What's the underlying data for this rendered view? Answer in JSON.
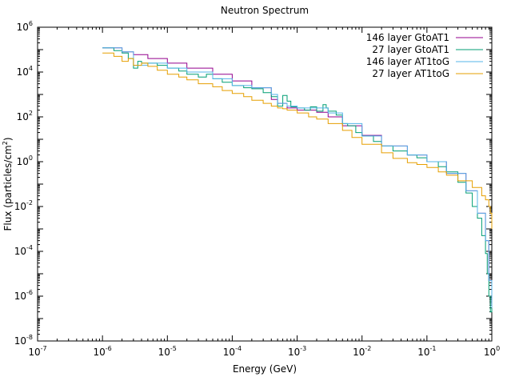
{
  "chart_data": {
    "type": "line",
    "title": "Neutron Spectrum",
    "xlabel": "Energy (GeV)",
    "ylabel_parts": {
      "main": "Flux (particles/cm",
      "sup": "2",
      "close": ")"
    },
    "xscale": "log",
    "yscale": "log",
    "xlim": [
      1e-07,
      1
    ],
    "ylim": [
      1e-08,
      1000000.0
    ],
    "grid": false,
    "legend_position": "top-right",
    "x_ticks": [
      {
        "base": "10",
        "exp": "-7"
      },
      {
        "base": "10",
        "exp": "-6"
      },
      {
        "base": "10",
        "exp": "-5"
      },
      {
        "base": "10",
        "exp": "-4"
      },
      {
        "base": "10",
        "exp": "-3"
      },
      {
        "base": "10",
        "exp": "-2"
      },
      {
        "base": "10",
        "exp": "-1"
      },
      {
        "base": "10",
        "exp": "0"
      }
    ],
    "y_ticks": [
      {
        "base": "10",
        "exp": "-8"
      },
      {
        "base": "10",
        "exp": "-6"
      },
      {
        "base": "10",
        "exp": "-4"
      },
      {
        "base": "10",
        "exp": "-2"
      },
      {
        "base": "10",
        "exp": "0"
      },
      {
        "base": "10",
        "exp": "2"
      },
      {
        "base": "10",
        "exp": "4"
      },
      {
        "base": "10",
        "exp": "6"
      }
    ],
    "series": [
      {
        "name": "146 layer GtoAT1",
        "color": "#94008e",
        "x": [
          1e-06,
          2e-06,
          3e-06,
          5e-06,
          1e-05,
          2e-05,
          5e-05,
          0.0001,
          0.0002,
          0.0004,
          0.0005,
          0.0007,
          0.001,
          0.002,
          0.003,
          0.005,
          0.01,
          0.02,
          0.05,
          0.1,
          0.2,
          0.4,
          0.6,
          0.8,
          0.9,
          1
        ],
        "y": [
          120000.0,
          80000.0,
          60000.0,
          40000.0,
          25000.0,
          15000.0,
          8000.0,
          4000.0,
          2000.0,
          600,
          400,
          250,
          200,
          160,
          100,
          40,
          15,
          5,
          2,
          1,
          0.3,
          0.05,
          0.005,
          0.0003,
          5e-06,
          2e-07
        ]
      },
      {
        "name": "27 layer GtoAT1",
        "color": "#009e73",
        "x": [
          1e-06,
          1.5e-06,
          2e-06,
          2.5e-06,
          3e-06,
          3.5e-06,
          4e-06,
          5e-06,
          7e-06,
          1e-05,
          1.5e-05,
          2e-05,
          3e-05,
          4e-05,
          5e-05,
          7e-05,
          0.0001,
          0.00015,
          0.0002,
          0.0003,
          0.0004,
          0.0005,
          0.0006,
          0.0007,
          0.0008,
          0.001,
          0.0013,
          0.0016,
          0.002,
          0.0025,
          0.0028,
          0.003,
          0.004,
          0.005,
          0.006,
          0.008,
          0.01,
          0.015,
          0.02,
          0.03,
          0.05,
          0.07,
          0.1,
          0.15,
          0.2,
          0.3,
          0.4,
          0.5,
          0.6,
          0.7,
          0.8,
          0.85,
          0.9,
          0.95,
          1
        ],
        "y": [
          120000.0,
          90000.0,
          70000.0,
          40000.0,
          15000.0,
          30000.0,
          25000.0,
          25000.0,
          20000.0,
          15000.0,
          11000.0,
          8000.0,
          6000.0,
          8000.0,
          5000.0,
          3500.0,
          2500.0,
          2000.0,
          1800.0,
          1200.0,
          800,
          300,
          900,
          500,
          280,
          250,
          200,
          280,
          180,
          350,
          250,
          180,
          120,
          50,
          40,
          20,
          14,
          8,
          5,
          3,
          2,
          1.5,
          1,
          0.6,
          0.35,
          0.12,
          0.04,
          0.01,
          0.003,
          0.0005,
          8e-05,
          1e-05,
          1e-06,
          2e-07,
          3e-07
        ]
      },
      {
        "name": "146 layer AT1toG",
        "color": "#56b4e9",
        "x": [
          1e-06,
          2e-06,
          3e-06,
          5e-06,
          1e-05,
          2e-05,
          5e-05,
          0.0001,
          0.0002,
          0.0004,
          0.0005,
          0.0007,
          0.001,
          0.002,
          0.003,
          0.005,
          0.01,
          0.02,
          0.05,
          0.1,
          0.2,
          0.4,
          0.6,
          0.8,
          0.9,
          1
        ],
        "y": [
          120000.0,
          80000.0,
          20000.0,
          25000.0,
          15000.0,
          10000.0,
          5000.0,
          2500.0,
          2000.0,
          1000.0,
          400,
          300,
          250,
          250,
          150,
          50,
          14,
          5,
          2,
          1,
          0.3,
          0.05,
          0.005,
          0.0003,
          5e-06,
          3e-07
        ]
      },
      {
        "name": "27 layer AT1toG",
        "color": "#e69f00",
        "x": [
          1e-06,
          1.5e-06,
          2e-06,
          2.5e-06,
          3e-06,
          4e-06,
          5e-06,
          7e-06,
          1e-05,
          1.5e-05,
          2e-05,
          3e-05,
          5e-05,
          7e-05,
          0.0001,
          0.00015,
          0.0002,
          0.0003,
          0.0004,
          0.0005,
          0.0006,
          0.0007,
          0.001,
          0.0015,
          0.002,
          0.003,
          0.005,
          0.007,
          0.01,
          0.02,
          0.03,
          0.05,
          0.07,
          0.1,
          0.15,
          0.2,
          0.3,
          0.5,
          0.7,
          0.8,
          0.9,
          0.95,
          1
        ],
        "y": [
          70000.0,
          50000.0,
          30000.0,
          40000.0,
          20000.0,
          25000.0,
          18000.0,
          12000.0,
          8000.0,
          6000.0,
          4500.0,
          3000.0,
          2200.0,
          1500.0,
          1100.0,
          800,
          550,
          400,
          300,
          250,
          230,
          200,
          150,
          100,
          80,
          50,
          25,
          12,
          6,
          2.5,
          1.4,
          0.9,
          0.75,
          0.55,
          0.35,
          0.25,
          0.14,
          0.07,
          0.03,
          0.02,
          0.01,
          0.005,
          0.001
        ]
      }
    ]
  }
}
